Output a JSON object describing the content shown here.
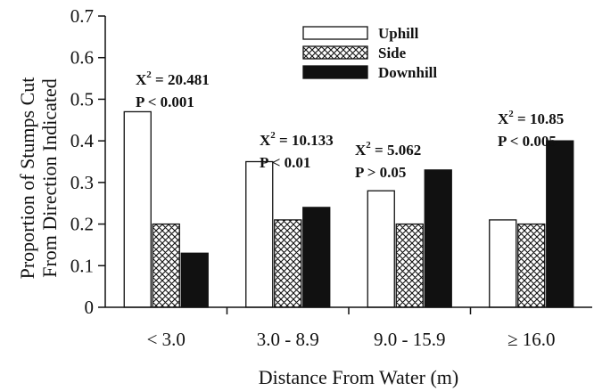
{
  "chart_data": {
    "type": "bar",
    "title": "",
    "xlabel": "Distance From Water (m)",
    "ylabel_lines": [
      "Proportion of Stumps Cut",
      "From Direction Indicated"
    ],
    "ylim": [
      0,
      0.7
    ],
    "yticks": [
      0,
      0.1,
      0.2,
      0.3,
      0.4,
      0.5,
      0.6,
      0.7
    ],
    "ytick_labels": [
      "0",
      "0.1",
      "0.2",
      "0.3",
      "0.4",
      "0.5",
      "0.6",
      "0.7"
    ],
    "categories": [
      "< 3.0",
      "3.0 - 8.9",
      "9.0 - 15.9",
      "≥ 16.0"
    ],
    "series": [
      {
        "name": "Uphill",
        "color": "#ffffff",
        "pattern": "solid",
        "values": [
          0.47,
          0.35,
          0.28,
          0.21
        ]
      },
      {
        "name": "Side",
        "color": "#bbbbbb",
        "pattern": "crosshatch",
        "values": [
          0.2,
          0.21,
          0.2,
          0.2
        ]
      },
      {
        "name": "Downhill",
        "color": "#111111",
        "pattern": "solid",
        "values": [
          0.13,
          0.24,
          0.33,
          0.4
        ]
      }
    ],
    "legend_position": "top-center",
    "grid": false,
    "annotations": [
      {
        "category": "< 3.0",
        "lines": [
          "X² = 20.481",
          "P < 0.001"
        ]
      },
      {
        "category": "3.0 - 8.9",
        "lines": [
          "X² = 10.133",
          "P < 0.01"
        ]
      },
      {
        "category": "9.0 - 15.9",
        "lines": [
          "X² = 5.062",
          "P > 0.05"
        ]
      },
      {
        "category": "≥ 16.0",
        "lines": [
          "X² = 10.85",
          "P < 0.005"
        ]
      }
    ]
  }
}
